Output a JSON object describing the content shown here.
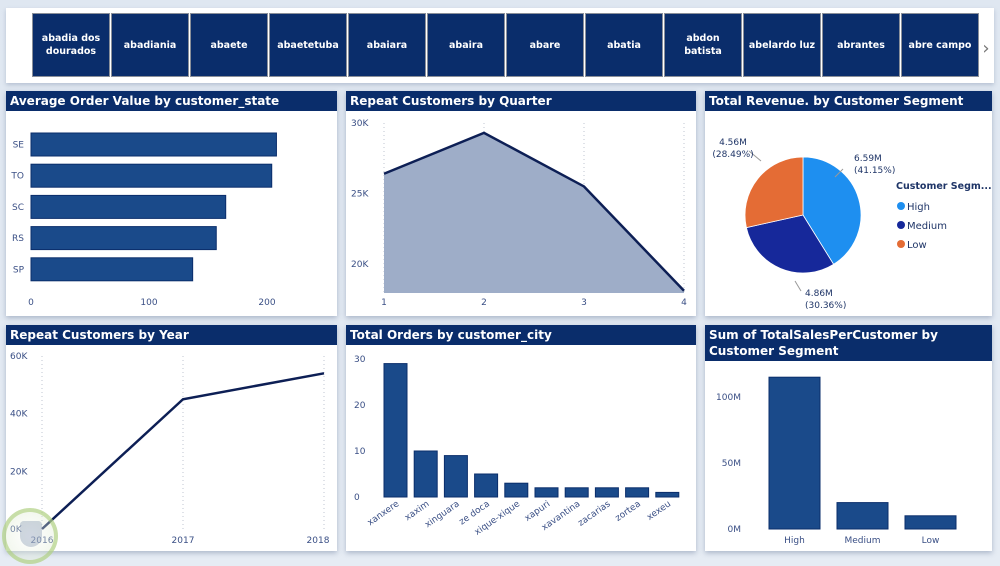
{
  "slicer": {
    "items": [
      "abadia dos dourados",
      "abadiania",
      "abaete",
      "abaetetuba",
      "abaiara",
      "abaira",
      "abare",
      "abatia",
      "abdon batista",
      "abelardo luz",
      "abrantes",
      "abre campo"
    ],
    "next_icon": "chevron-right-icon",
    "next_glyph": "›"
  },
  "colors": {
    "header_bg": "#0a2d6b",
    "bar": "#1a4a8a",
    "bar_edge": "#0a2d6b",
    "line": "#0d1f55",
    "area_fill": "#9eadc8",
    "pie_high": "#1e8ff0",
    "pie_medium": "#16289a",
    "pie_low": "#e46c35",
    "axis_text": "#3a4f85"
  },
  "chart_data": [
    {
      "id": "avg_order_value",
      "type": "bar",
      "orientation": "horizontal",
      "title": "Average Order Value by customer_state",
      "categories": [
        "SE",
        "TO",
        "SC",
        "RS",
        "SP"
      ],
      "values": [
        208,
        204,
        165,
        157,
        137
      ],
      "xlim": [
        0,
        250
      ],
      "xticks": [
        0,
        100,
        200
      ],
      "xtick_labels": [
        "0",
        "100",
        "200"
      ],
      "xlabel": "",
      "ylabel": ""
    },
    {
      "id": "repeat_by_quarter",
      "type": "area",
      "title": "Repeat Customers by Quarter",
      "x": [
        1,
        2,
        3,
        4
      ],
      "xtick_labels": [
        "1",
        "2",
        "3",
        "4"
      ],
      "values": [
        26400,
        29300,
        25500,
        18100
      ],
      "ylim": [
        18100,
        30500
      ],
      "yticks": [
        20000,
        25000,
        30000
      ],
      "ytick_labels": [
        "20K",
        "25K",
        "30K"
      ],
      "grid": "vertical-dotted"
    },
    {
      "id": "revenue_by_segment",
      "type": "pie",
      "title": "Total Revenue. by Customer Segment",
      "legend_title": "Customer Segm...",
      "legend_position": "right",
      "slices": [
        {
          "name": "High",
          "value": 6.59,
          "label": "6.59M",
          "pct_label": "(41.15%)"
        },
        {
          "name": "Medium",
          "value": 4.86,
          "label": "4.86M",
          "pct_label": "(30.36%)"
        },
        {
          "name": "Low",
          "value": 4.56,
          "label": "4.56M",
          "pct_label": "(28.49%)"
        }
      ]
    },
    {
      "id": "repeat_by_year",
      "type": "line",
      "title": "Repeat Customers by Year",
      "x": [
        2016,
        2017,
        2018
      ],
      "xtick_labels": [
        "2016",
        "2017",
        "2018"
      ],
      "values": [
        0,
        45000,
        54000
      ],
      "ylim": [
        0,
        60000
      ],
      "yticks": [
        0,
        20000,
        40000,
        60000
      ],
      "ytick_labels": [
        "0K",
        "20K",
        "40K",
        "60K"
      ],
      "grid": "vertical-dotted"
    },
    {
      "id": "orders_by_city",
      "type": "bar",
      "orientation": "vertical",
      "title": "Total Orders by customer_city",
      "categories": [
        "xanxere",
        "xaxim",
        "xinguara",
        "ze doca",
        "xique-xique",
        "xapuri",
        "xavantina",
        "zacarias",
        "zortea",
        "xexeu"
      ],
      "values": [
        29,
        10,
        9,
        5,
        3,
        2,
        2,
        2,
        2,
        1
      ],
      "ylim": [
        0,
        30
      ],
      "yticks": [
        0,
        10,
        20,
        30
      ],
      "ytick_labels": [
        "0",
        "10",
        "20",
        "30"
      ],
      "xtick_rotation": "diagonal"
    },
    {
      "id": "sales_by_segment",
      "type": "bar",
      "orientation": "vertical",
      "title": "Sum of TotalSalesPerCustomer by Customer Segment",
      "categories": [
        "High",
        "Medium",
        "Low"
      ],
      "values": [
        115,
        20,
        10
      ],
      "unit": "M",
      "ylim": [
        0,
        125
      ],
      "yticks": [
        0,
        50,
        100
      ],
      "ytick_labels": [
        "0M",
        "50M",
        "100M"
      ]
    }
  ]
}
